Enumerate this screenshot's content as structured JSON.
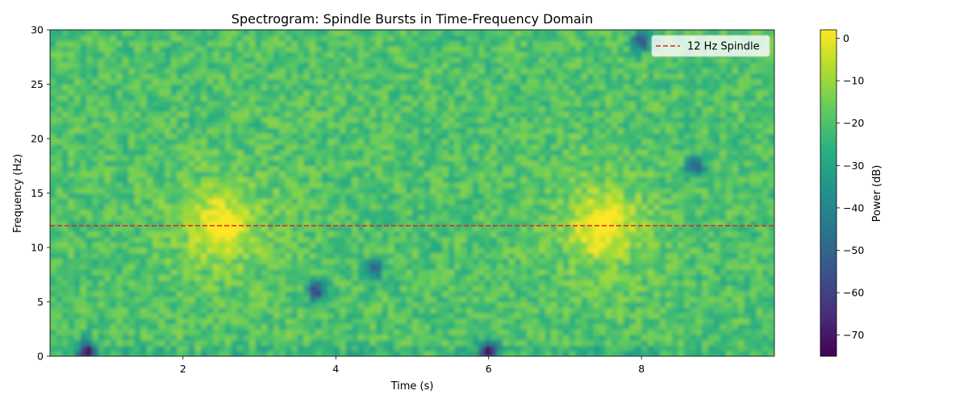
{
  "chart_data": {
    "type": "heatmap",
    "title": "Spectrogram: Spindle Bursts in Time-Frequency Domain",
    "xlabel": "Time (s)",
    "ylabel": "Frequency (Hz)",
    "xlim": [
      0.26,
      9.74
    ],
    "ylim": [
      0,
      30
    ],
    "xticks": [
      2,
      4,
      6,
      8
    ],
    "xtick_labels": [
      "2",
      "4",
      "6",
      "8"
    ],
    "yticks": [
      0,
      5,
      10,
      15,
      20,
      25,
      30
    ],
    "ytick_labels": [
      "0",
      "5",
      "10",
      "15",
      "20",
      "25",
      "30"
    ],
    "colormap": "viridis",
    "colorbar": {
      "label": "Power (dB)",
      "range": [
        -75,
        2
      ],
      "ticks": [
        0,
        -10,
        -20,
        -30,
        -40,
        -50,
        -60,
        -70
      ],
      "tick_labels": [
        "0",
        "−10",
        "−20",
        "−30",
        "−40",
        "−50",
        "−60",
        "−70"
      ]
    },
    "background_power_db": -20,
    "bursts": [
      {
        "center_time_s": 2.5,
        "center_freq_hz": 12,
        "peak_power_db": 0
      },
      {
        "center_time_s": 7.5,
        "center_freq_hz": 12,
        "peak_power_db": 0
      }
    ],
    "low_power_spots": [
      {
        "time_s": 0.75,
        "freq_hz": 0.5,
        "power_db": -70
      },
      {
        "time_s": 3.75,
        "freq_hz": 6,
        "power_db": -62
      },
      {
        "time_s": 6.0,
        "freq_hz": 0.5,
        "power_db": -72
      },
      {
        "time_s": 8.7,
        "freq_hz": 17.5,
        "power_db": -55
      },
      {
        "time_s": 4.5,
        "freq_hz": 8,
        "power_db": -50
      },
      {
        "time_s": 8.0,
        "freq_hz": 29,
        "power_db": -55
      }
    ],
    "reference_line": {
      "y": 12,
      "label": "12 Hz Spindle",
      "color": "#d62728",
      "style": "dashed"
    },
    "legend": {
      "position": "top-right",
      "entries": [
        "12 Hz Spindle"
      ]
    }
  }
}
